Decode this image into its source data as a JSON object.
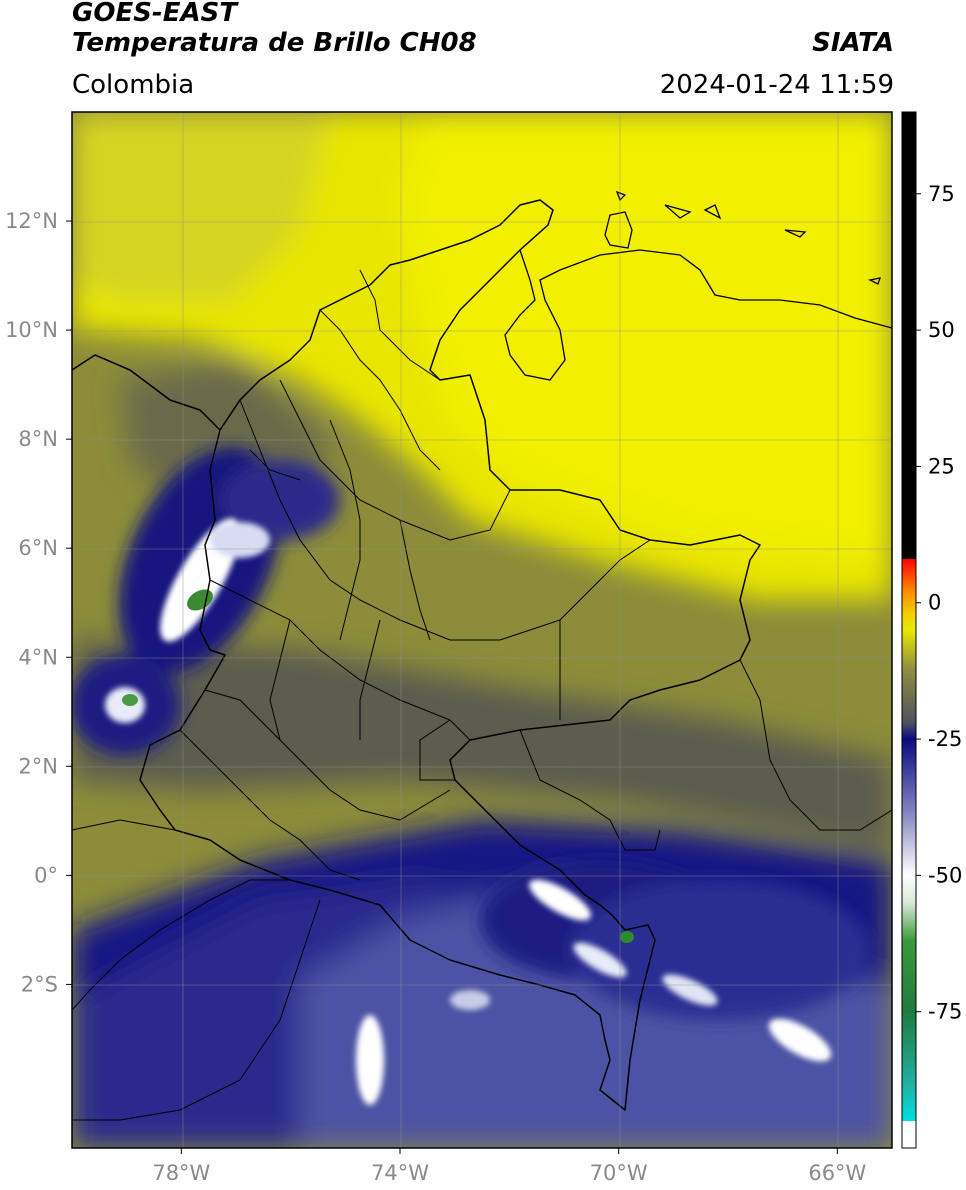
{
  "header": {
    "satellite": "GOES-EAST",
    "product": "Temperatura de Brillo CH08",
    "region": "Colombia",
    "source": "SIATA",
    "datetime": "2024-01-24 11:59"
  },
  "map": {
    "lon_range": [
      -80,
      -65
    ],
    "lat_range": [
      -5,
      14
    ],
    "lat_ticks": [
      {
        "value": 12,
        "label": "12°N"
      },
      {
        "value": 10,
        "label": "10°N"
      },
      {
        "value": 8,
        "label": "8°N"
      },
      {
        "value": 6,
        "label": "6°N"
      },
      {
        "value": 4,
        "label": "4°N"
      },
      {
        "value": 2,
        "label": "2°N"
      },
      {
        "value": 0,
        "label": "0°"
      },
      {
        "value": -2,
        "label": "2°S"
      }
    ],
    "lon_ticks": [
      {
        "value": -78,
        "label": "78°W"
      },
      {
        "value": -74,
        "label": "74°W"
      },
      {
        "value": -70,
        "label": "70°W"
      },
      {
        "value": -66,
        "label": "66°W"
      }
    ],
    "colors": {
      "warm_yellow": "#f0ef00",
      "olive": "#8a8a3a",
      "dark_gray": "#5a5a52",
      "navy": "#15157e",
      "slate_blue": "#5458a8",
      "white": "#ffffff",
      "green": "#2e8a2e"
    }
  },
  "colorbar": {
    "range": [
      -100,
      90
    ],
    "ticks": [
      {
        "value": 75,
        "label": "75"
      },
      {
        "value": 50,
        "label": "50"
      },
      {
        "value": 25,
        "label": "25"
      },
      {
        "value": 0,
        "label": "0"
      },
      {
        "value": -25,
        "label": "-25"
      },
      {
        "value": -50,
        "label": "-50"
      },
      {
        "value": -75,
        "label": "-75"
      }
    ],
    "stops": [
      {
        "value": -100,
        "color": "#ffffff"
      },
      {
        "value": -95,
        "color": "#ffffff"
      },
      {
        "value": -95,
        "color": "#00e0e0"
      },
      {
        "value": -88,
        "color": "#20b0a0"
      },
      {
        "value": -75,
        "color": "#207a40"
      },
      {
        "value": -62,
        "color": "#3a9a3a"
      },
      {
        "value": -55,
        "color": "#d8e8d8"
      },
      {
        "value": -50,
        "color": "#ffffff"
      },
      {
        "value": -38,
        "color": "#8080c0"
      },
      {
        "value": -25,
        "color": "#0a0a80"
      },
      {
        "value": -22,
        "color": "#505060"
      },
      {
        "value": -12,
        "color": "#909040"
      },
      {
        "value": -5,
        "color": "#e8e800"
      },
      {
        "value": -2,
        "color": "#f0d000"
      },
      {
        "value": 2,
        "color": "#ff8c00"
      },
      {
        "value": 8,
        "color": "#ff0000"
      },
      {
        "value": 8,
        "color": "#000000"
      },
      {
        "value": 90,
        "color": "#000000"
      }
    ]
  }
}
